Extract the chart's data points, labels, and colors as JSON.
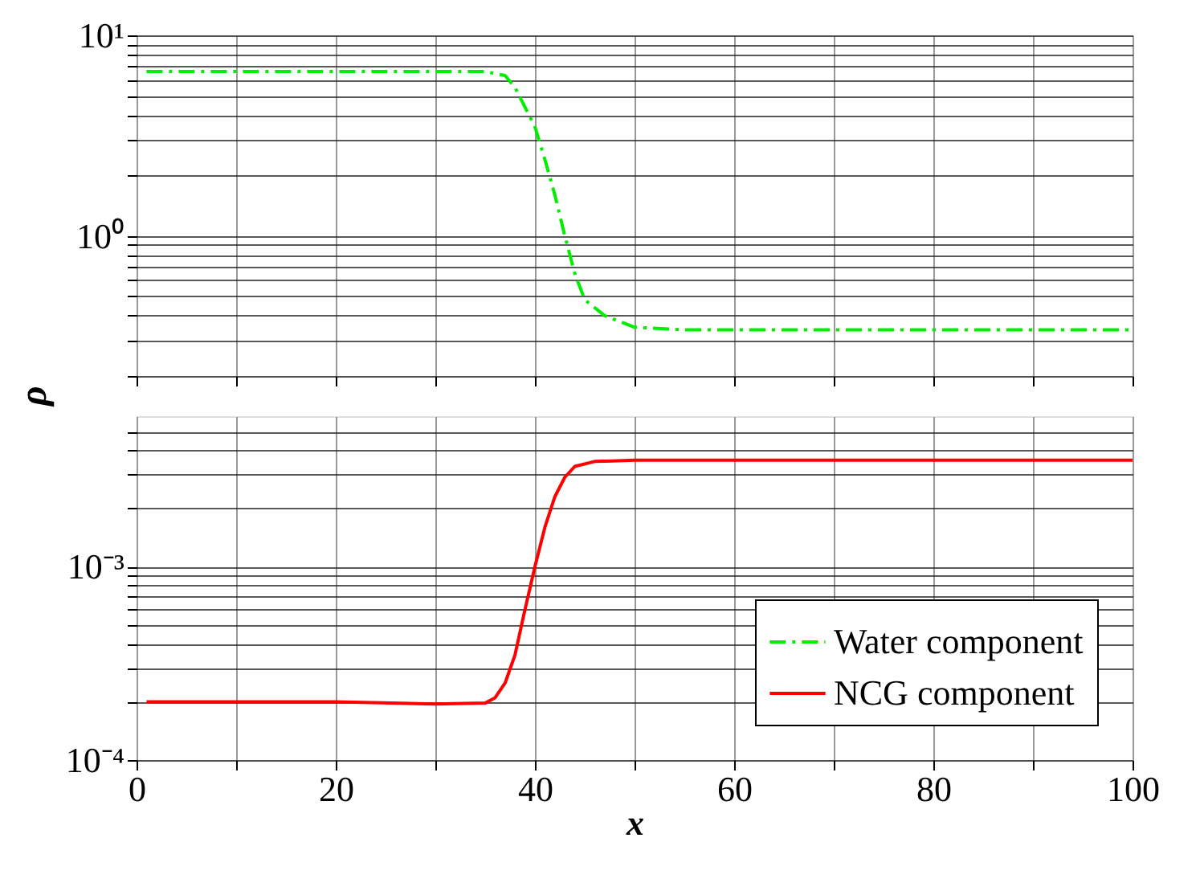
{
  "chart_data": [
    {
      "type": "line",
      "ylim": [
        0.2,
        10
      ],
      "xlim": [
        0,
        100
      ],
      "log": true,
      "grid": true,
      "tick_labels": "y",
      "ylabel": "ρ",
      "xticks": [
        0,
        10,
        20,
        30,
        40,
        50,
        60,
        70,
        80,
        90,
        100
      ],
      "yticks": [
        {
          "value": 0.2,
          "label": null
        },
        {
          "value": 0.3,
          "label": null
        },
        {
          "value": 0.4,
          "label": null
        },
        {
          "value": 0.5,
          "label": null
        },
        {
          "value": 0.6,
          "label": null
        },
        {
          "value": 0.7,
          "label": null
        },
        {
          "value": 0.8,
          "label": null
        },
        {
          "value": 0.9,
          "label": null
        },
        {
          "value": 1,
          "label": "10⁰"
        },
        {
          "value": 2,
          "label": null
        },
        {
          "value": 3,
          "label": null
        },
        {
          "value": 4,
          "label": null
        },
        {
          "value": 5,
          "label": null
        },
        {
          "value": 6,
          "label": null
        },
        {
          "value": 7,
          "label": null
        },
        {
          "value": 8,
          "label": null
        },
        {
          "value": 9,
          "label": null
        },
        {
          "value": 10,
          "label": "10¹"
        }
      ],
      "series": [
        {
          "name": "Water component",
          "color": "#00ee00",
          "line_style": "dashed",
          "x": [
            1,
            30,
            35,
            37,
            38,
            40,
            41,
            42,
            43,
            44,
            45,
            47,
            50,
            55,
            100
          ],
          "values": [
            6.6,
            6.6,
            6.6,
            6.3,
            5.5,
            3.5,
            2.4,
            1.6,
            1.0,
            0.65,
            0.48,
            0.4,
            0.35,
            0.34,
            0.34
          ]
        }
      ]
    },
    {
      "type": "line",
      "ylim": [
        0.0001,
        0.006
      ],
      "xlim": [
        0,
        100
      ],
      "log": true,
      "grid": true,
      "xlabel": "x",
      "legend": "bottom right",
      "xticks": [
        0,
        {
          "value": 10,
          "label": null
        },
        20,
        {
          "value": 30,
          "label": null
        },
        40,
        {
          "value": 50,
          "label": null
        },
        60,
        {
          "value": 70,
          "label": null
        },
        80,
        {
          "value": 90,
          "label": null
        },
        100
      ],
      "yticks": [
        {
          "value": 0.0001,
          "label": "10⁻⁴"
        },
        {
          "value": 0.0002,
          "label": null
        },
        {
          "value": 0.0003,
          "label": null
        },
        {
          "value": 0.0004,
          "label": null
        },
        {
          "value": 0.0005,
          "label": null
        },
        {
          "value": 0.0006,
          "label": null
        },
        {
          "value": 0.0007,
          "label": null
        },
        {
          "value": 0.0008,
          "label": null
        },
        {
          "value": 0.0009,
          "label": null
        },
        {
          "value": 0.001,
          "label": "10⁻³"
        },
        {
          "value": 0.002,
          "label": null
        },
        {
          "value": 0.003,
          "label": null
        },
        {
          "value": 0.004,
          "label": null
        },
        {
          "value": 0.005,
          "label": null
        }
      ],
      "series": [
        {
          "name": "NCG component",
          "color": "#ff0000",
          "line_style": "solid",
          "x": [
            1,
            20,
            30,
            35,
            36,
            37,
            38,
            39,
            40,
            41,
            42,
            43,
            44,
            46,
            50,
            100
          ],
          "values": [
            0.0002,
            0.0002,
            0.000195,
            0.000197,
            0.00021,
            0.00025,
            0.00035,
            0.0006,
            0.001,
            0.0016,
            0.0023,
            0.0029,
            0.0033,
            0.0035,
            0.00355,
            0.00355
          ]
        }
      ]
    }
  ]
}
